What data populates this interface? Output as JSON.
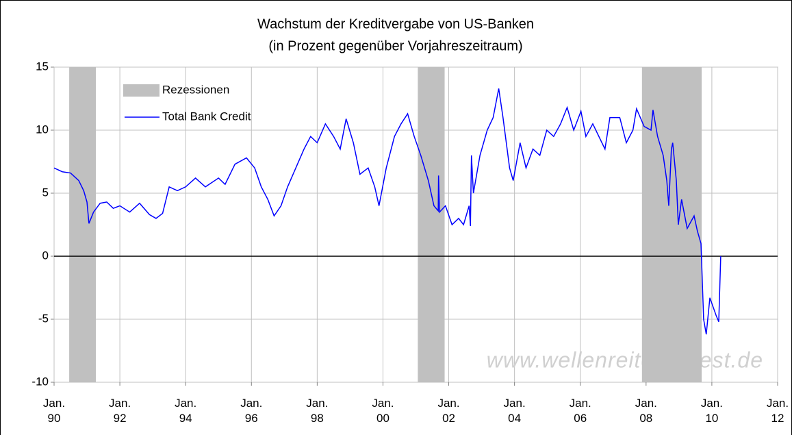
{
  "chart_data": {
    "type": "line",
    "title": "Wachstum der Kreditvergabe von US-Banken",
    "subtitle": "(in Prozent gegenüber Vorjahreszeitraum)",
    "watermark": "www.wellenreiter-invest.de",
    "x": [
      1990.0,
      1990.25,
      1990.5,
      1990.75,
      1990.9,
      1991.0,
      1991.06,
      1991.2,
      1991.4,
      1991.6,
      1991.8,
      1992.0,
      1992.3,
      1992.6,
      1992.9,
      1993.1,
      1993.3,
      1993.5,
      1993.75,
      1994.0,
      1994.3,
      1994.6,
      1995.0,
      1995.2,
      1995.5,
      1995.85,
      1996.1,
      1996.3,
      1996.5,
      1996.69,
      1996.9,
      1997.1,
      1997.35,
      1997.6,
      1997.8,
      1998.0,
      1998.25,
      1998.5,
      1998.7,
      1998.88,
      1999.1,
      1999.3,
      1999.55,
      1999.75,
      1999.88,
      2000.1,
      2000.35,
      2000.55,
      2000.75,
      2000.95,
      2001.15,
      2001.38,
      2001.55,
      2001.68,
      2001.69,
      2001.72,
      2001.9,
      2002.1,
      2002.3,
      2002.45,
      2002.62,
      2002.66,
      2002.69,
      2002.75,
      2002.95,
      2003.17,
      2003.35,
      2003.52,
      2003.65,
      2003.85,
      2003.96,
      2004.17,
      2004.35,
      2004.56,
      2004.77,
      2004.98,
      2005.19,
      2005.4,
      2005.6,
      2005.8,
      2006.02,
      2006.17,
      2006.38,
      2006.75,
      2006.9,
      2007.2,
      2007.4,
      2007.6,
      2007.71,
      2007.94,
      2008.15,
      2008.21,
      2008.35,
      2008.52,
      2008.63,
      2008.69,
      2008.77,
      2008.81,
      2008.92,
      2008.98,
      2009.08,
      2009.25,
      2009.46,
      2009.56,
      2009.67,
      2009.75,
      2009.83,
      2009.94,
      2010.13,
      2010.21,
      2010.27
    ],
    "series": [
      {
        "name": "Total Bank Credit",
        "color": "#0000ff",
        "values": [
          7.0,
          6.7,
          6.6,
          6.0,
          5.2,
          4.3,
          2.6,
          3.5,
          4.2,
          4.3,
          3.8,
          4.0,
          3.5,
          4.2,
          3.3,
          3.0,
          3.4,
          5.5,
          5.2,
          5.5,
          6.2,
          5.5,
          6.2,
          5.7,
          7.3,
          7.8,
          7.0,
          5.5,
          4.5,
          3.2,
          4.0,
          5.5,
          7.0,
          8.5,
          9.5,
          9.0,
          10.5,
          9.5,
          8.5,
          10.9,
          9.0,
          6.5,
          7.0,
          5.5,
          4.0,
          7.0,
          9.5,
          10.5,
          11.3,
          9.5,
          8.0,
          6.0,
          4.0,
          3.6,
          6.4,
          3.5,
          4.0,
          2.5,
          3.0,
          2.5,
          4.0,
          2.4,
          8.0,
          5.0,
          8.0,
          10.0,
          11.0,
          13.3,
          11.0,
          7.0,
          6.0,
          9.0,
          7.0,
          8.5,
          8.0,
          10.0,
          9.5,
          10.5,
          11.8,
          10.0,
          11.5,
          9.5,
          10.5,
          8.5,
          11.0,
          11.0,
          9.0,
          10.0,
          11.7,
          10.3,
          10.0,
          11.6,
          9.5,
          8.0,
          6.0,
          4.0,
          8.5,
          9.0,
          6.0,
          2.5,
          4.5,
          2.2,
          3.2,
          2.0,
          1.0,
          -5.0,
          -6.2,
          -3.3,
          -4.7,
          -5.2,
          0
        ]
      }
    ],
    "recessions": {
      "name": "Rezessionen",
      "color": "#c0c0c0",
      "spans": [
        [
          1990.46,
          1991.27
        ],
        [
          2001.06,
          2001.875
        ],
        [
          2007.875,
          2009.69
        ]
      ]
    },
    "xlim": [
      1990,
      2012
    ],
    "xticks": [
      {
        "value": 1990,
        "label": "Jan.\n90"
      },
      {
        "value": 1992,
        "label": "Jan.\n92"
      },
      {
        "value": 1994,
        "label": "Jan.\n94"
      },
      {
        "value": 1996,
        "label": "Jan.\n96"
      },
      {
        "value": 1998,
        "label": "Jan.\n98"
      },
      {
        "value": 2000,
        "label": "Jan.\n00"
      },
      {
        "value": 2002,
        "label": "Jan.\n02"
      },
      {
        "value": 2004,
        "label": "Jan.\n04"
      },
      {
        "value": 2006,
        "label": "Jan.\n06"
      },
      {
        "value": 2008,
        "label": "Jan.\n08"
      },
      {
        "value": 2010,
        "label": "Jan.\n10"
      },
      {
        "value": 2012,
        "label": "Jan.\n12"
      }
    ],
    "ylim": [
      -10,
      15
    ],
    "yticks": [
      -10,
      -5,
      0,
      5,
      10,
      15
    ],
    "grid": true
  }
}
